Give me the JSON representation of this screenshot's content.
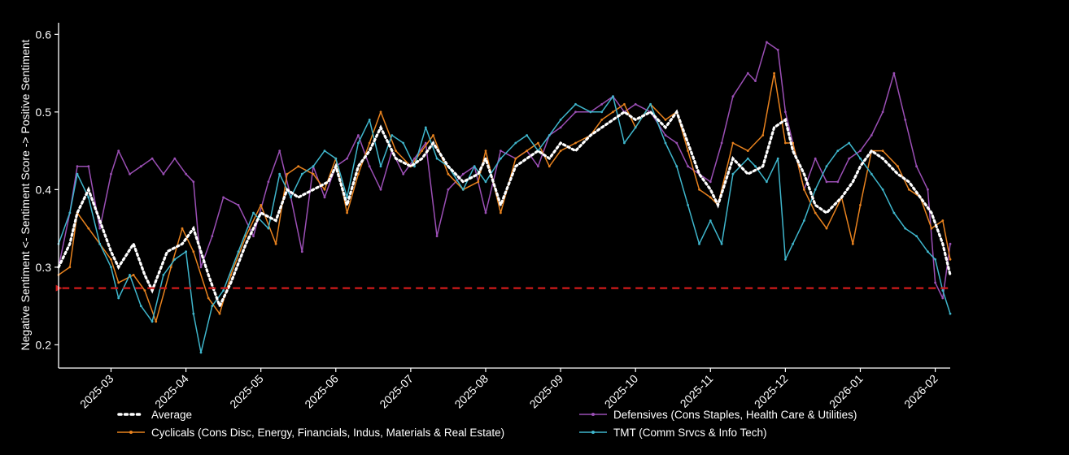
{
  "chart_data": {
    "type": "line",
    "title": "",
    "xlabel": "",
    "ylabel": "Negative Sentiment <- Sentiment Score -> Positive Sentiment",
    "ylim": [
      0.17,
      0.615
    ],
    "x_range_months": [
      1.3,
      13.2
    ],
    "x_ticks": [
      {
        "label": "2025-03",
        "m": 2
      },
      {
        "label": "2025-04",
        "m": 3
      },
      {
        "label": "2025-05",
        "m": 4
      },
      {
        "label": "2025-06",
        "m": 5
      },
      {
        "label": "2025-07",
        "m": 6
      },
      {
        "label": "2025-08",
        "m": 7
      },
      {
        "label": "2025-09",
        "m": 8
      },
      {
        "label": "2025-10",
        "m": 9
      },
      {
        "label": "2025-11",
        "m": 10
      },
      {
        "label": "2025-12",
        "m": 11
      },
      {
        "label": "2026-01",
        "m": 12
      },
      {
        "label": "2026-02",
        "m": 13
      }
    ],
    "y_ticks": [
      {
        "label": "0.2",
        "v": 0.2
      },
      {
        "label": "0.3",
        "v": 0.3
      },
      {
        "label": "0.4",
        "v": 0.4
      },
      {
        "label": "0.5",
        "v": 0.5
      },
      {
        "label": "0.6",
        "v": 0.6
      }
    ],
    "reference_line": {
      "value": 0.273,
      "color": "#d11a1a",
      "style": "dashed-arrow"
    },
    "series": [
      {
        "name": "Average",
        "color": "#ffffff",
        "style": "dotted",
        "x": [
          1.3,
          1.45,
          1.55,
          1.7,
          1.85,
          2.0,
          2.1,
          2.3,
          2.45,
          2.55,
          2.75,
          2.95,
          3.1,
          3.3,
          3.45,
          3.6,
          3.8,
          4.0,
          4.2,
          4.35,
          4.5,
          4.7,
          4.9,
          5.0,
          5.15,
          5.3,
          5.45,
          5.6,
          5.8,
          6.0,
          6.15,
          6.3,
          6.5,
          6.7,
          6.9,
          7.0,
          7.2,
          7.4,
          7.55,
          7.7,
          7.85,
          8.0,
          8.2,
          8.4,
          8.55,
          8.7,
          8.85,
          9.0,
          9.2,
          9.4,
          9.55,
          9.7,
          9.85,
          10.0,
          10.1,
          10.3,
          10.5,
          10.7,
          10.85,
          11.0,
          11.1,
          11.25,
          11.4,
          11.55,
          11.75,
          11.9,
          12.0,
          12.15,
          12.3,
          12.5,
          12.65,
          12.8,
          12.95,
          13.1,
          13.2
        ],
        "y": [
          0.3,
          0.33,
          0.37,
          0.4,
          0.36,
          0.32,
          0.3,
          0.33,
          0.29,
          0.27,
          0.32,
          0.33,
          0.35,
          0.29,
          0.25,
          0.28,
          0.33,
          0.37,
          0.36,
          0.4,
          0.39,
          0.4,
          0.41,
          0.43,
          0.38,
          0.43,
          0.45,
          0.48,
          0.44,
          0.43,
          0.44,
          0.46,
          0.43,
          0.41,
          0.42,
          0.44,
          0.38,
          0.43,
          0.44,
          0.45,
          0.44,
          0.46,
          0.45,
          0.47,
          0.48,
          0.49,
          0.5,
          0.49,
          0.5,
          0.48,
          0.5,
          0.46,
          0.42,
          0.4,
          0.38,
          0.44,
          0.42,
          0.43,
          0.48,
          0.49,
          0.45,
          0.42,
          0.38,
          0.37,
          0.39,
          0.41,
          0.43,
          0.45,
          0.44,
          0.42,
          0.41,
          0.39,
          0.37,
          0.33,
          0.29
        ]
      },
      {
        "name": "Cyclicals (Cons Disc, Energy, Financials, Indus, Materials & Real Estate)",
        "color": "#e8821e",
        "style": "solid",
        "x": [
          1.3,
          1.45,
          1.55,
          1.7,
          1.85,
          2.0,
          2.1,
          2.3,
          2.45,
          2.6,
          2.8,
          2.95,
          3.1,
          3.3,
          3.45,
          3.6,
          3.8,
          4.0,
          4.2,
          4.35,
          4.5,
          4.7,
          4.85,
          5.0,
          5.15,
          5.3,
          5.45,
          5.6,
          5.8,
          6.0,
          6.15,
          6.3,
          6.5,
          6.7,
          6.9,
          7.0,
          7.2,
          7.4,
          7.55,
          7.7,
          7.85,
          8.0,
          8.2,
          8.4,
          8.55,
          8.7,
          8.85,
          9.0,
          9.2,
          9.4,
          9.55,
          9.7,
          9.85,
          10.0,
          10.1,
          10.3,
          10.5,
          10.7,
          10.85,
          11.0,
          11.1,
          11.25,
          11.4,
          11.55,
          11.75,
          11.9,
          12.0,
          12.15,
          12.3,
          12.5,
          12.65,
          12.8,
          12.95,
          13.1,
          13.2
        ],
        "y": [
          0.29,
          0.3,
          0.37,
          0.35,
          0.33,
          0.31,
          0.28,
          0.29,
          0.27,
          0.23,
          0.3,
          0.35,
          0.32,
          0.26,
          0.24,
          0.29,
          0.34,
          0.38,
          0.33,
          0.42,
          0.43,
          0.42,
          0.4,
          0.44,
          0.37,
          0.42,
          0.46,
          0.5,
          0.45,
          0.43,
          0.45,
          0.47,
          0.42,
          0.4,
          0.41,
          0.45,
          0.37,
          0.44,
          0.45,
          0.46,
          0.43,
          0.45,
          0.46,
          0.47,
          0.49,
          0.5,
          0.51,
          0.48,
          0.51,
          0.49,
          0.5,
          0.45,
          0.4,
          0.39,
          0.38,
          0.46,
          0.45,
          0.47,
          0.55,
          0.46,
          0.46,
          0.4,
          0.37,
          0.35,
          0.39,
          0.33,
          0.38,
          0.45,
          0.45,
          0.43,
          0.4,
          0.39,
          0.35,
          0.36,
          0.31
        ]
      },
      {
        "name": "Defensives (Cons Staples, Health Care & Utilities)",
        "color": "#9b4fb5",
        "style": "solid",
        "x": [
          1.3,
          1.45,
          1.55,
          1.7,
          1.85,
          2.0,
          2.1,
          2.25,
          2.4,
          2.55,
          2.7,
          2.85,
          3.0,
          3.1,
          3.2,
          3.35,
          3.5,
          3.7,
          3.9,
          4.1,
          4.25,
          4.4,
          4.55,
          4.7,
          4.85,
          5.0,
          5.15,
          5.3,
          5.45,
          5.6,
          5.75,
          5.9,
          6.05,
          6.2,
          6.35,
          6.5,
          6.7,
          6.85,
          7.0,
          7.2,
          7.4,
          7.55,
          7.7,
          7.85,
          8.0,
          8.2,
          8.4,
          8.55,
          8.7,
          8.85,
          9.0,
          9.2,
          9.4,
          9.55,
          9.7,
          9.85,
          10.0,
          10.15,
          10.3,
          10.5,
          10.6,
          10.75,
          10.9,
          11.0,
          11.1,
          11.25,
          11.4,
          11.55,
          11.7,
          11.85,
          12.0,
          12.15,
          12.3,
          12.45,
          12.6,
          12.75,
          12.9,
          13.0,
          13.1,
          13.2
        ],
        "y": [
          0.3,
          0.37,
          0.43,
          0.43,
          0.35,
          0.42,
          0.45,
          0.42,
          0.43,
          0.44,
          0.42,
          0.44,
          0.42,
          0.41,
          0.3,
          0.34,
          0.39,
          0.38,
          0.34,
          0.41,
          0.45,
          0.39,
          0.32,
          0.43,
          0.39,
          0.43,
          0.44,
          0.47,
          0.43,
          0.4,
          0.45,
          0.42,
          0.44,
          0.46,
          0.34,
          0.4,
          0.42,
          0.43,
          0.37,
          0.45,
          0.44,
          0.45,
          0.43,
          0.47,
          0.48,
          0.5,
          0.5,
          0.51,
          0.52,
          0.5,
          0.51,
          0.5,
          0.47,
          0.46,
          0.43,
          0.42,
          0.41,
          0.46,
          0.52,
          0.55,
          0.54,
          0.59,
          0.58,
          0.5,
          0.46,
          0.4,
          0.44,
          0.41,
          0.41,
          0.44,
          0.45,
          0.47,
          0.5,
          0.55,
          0.49,
          0.43,
          0.4,
          0.28,
          0.26,
          0.33
        ]
      },
      {
        "name": "TMT (Comm Srvcs & Info Tech)",
        "color": "#3fb6cc",
        "style": "solid",
        "x": [
          1.3,
          1.45,
          1.55,
          1.7,
          1.85,
          2.0,
          2.1,
          2.25,
          2.4,
          2.55,
          2.7,
          2.85,
          3.0,
          3.1,
          3.2,
          3.35,
          3.5,
          3.7,
          3.9,
          4.1,
          4.25,
          4.4,
          4.55,
          4.7,
          4.85,
          5.0,
          5.15,
          5.3,
          5.45,
          5.6,
          5.75,
          5.9,
          6.05,
          6.2,
          6.35,
          6.5,
          6.7,
          6.85,
          7.0,
          7.2,
          7.4,
          7.55,
          7.7,
          7.85,
          8.0,
          8.2,
          8.4,
          8.55,
          8.7,
          8.85,
          9.0,
          9.2,
          9.4,
          9.55,
          9.7,
          9.85,
          10.0,
          10.15,
          10.3,
          10.5,
          10.6,
          10.75,
          10.9,
          11.0,
          11.1,
          11.25,
          11.4,
          11.55,
          11.7,
          11.85,
          12.0,
          12.15,
          12.3,
          12.45,
          12.6,
          12.75,
          12.9,
          13.0,
          13.1,
          13.2
        ],
        "y": [
          0.33,
          0.37,
          0.42,
          0.39,
          0.33,
          0.3,
          0.26,
          0.29,
          0.25,
          0.23,
          0.29,
          0.31,
          0.32,
          0.24,
          0.19,
          0.25,
          0.27,
          0.32,
          0.37,
          0.35,
          0.42,
          0.39,
          0.42,
          0.43,
          0.45,
          0.44,
          0.39,
          0.46,
          0.49,
          0.43,
          0.47,
          0.46,
          0.43,
          0.48,
          0.44,
          0.43,
          0.4,
          0.43,
          0.41,
          0.44,
          0.46,
          0.47,
          0.45,
          0.47,
          0.49,
          0.51,
          0.5,
          0.5,
          0.52,
          0.46,
          0.48,
          0.51,
          0.46,
          0.43,
          0.38,
          0.33,
          0.36,
          0.33,
          0.42,
          0.44,
          0.43,
          0.41,
          0.44,
          0.31,
          0.33,
          0.36,
          0.4,
          0.43,
          0.45,
          0.46,
          0.44,
          0.42,
          0.4,
          0.37,
          0.35,
          0.34,
          0.32,
          0.31,
          0.27,
          0.24
        ]
      }
    ],
    "legend": {
      "position": "bottom",
      "entries": [
        {
          "label": "Average",
          "series": 0
        },
        {
          "label": "Defensives (Cons Staples, Health Care & Utilities)",
          "series": 2
        },
        {
          "label": "Cyclicals (Cons Disc, Energy, Financials, Indus, Materials & Real Estate)",
          "series": 1
        },
        {
          "label": "TMT (Comm Srvcs & Info Tech)",
          "series": 3
        }
      ]
    }
  }
}
